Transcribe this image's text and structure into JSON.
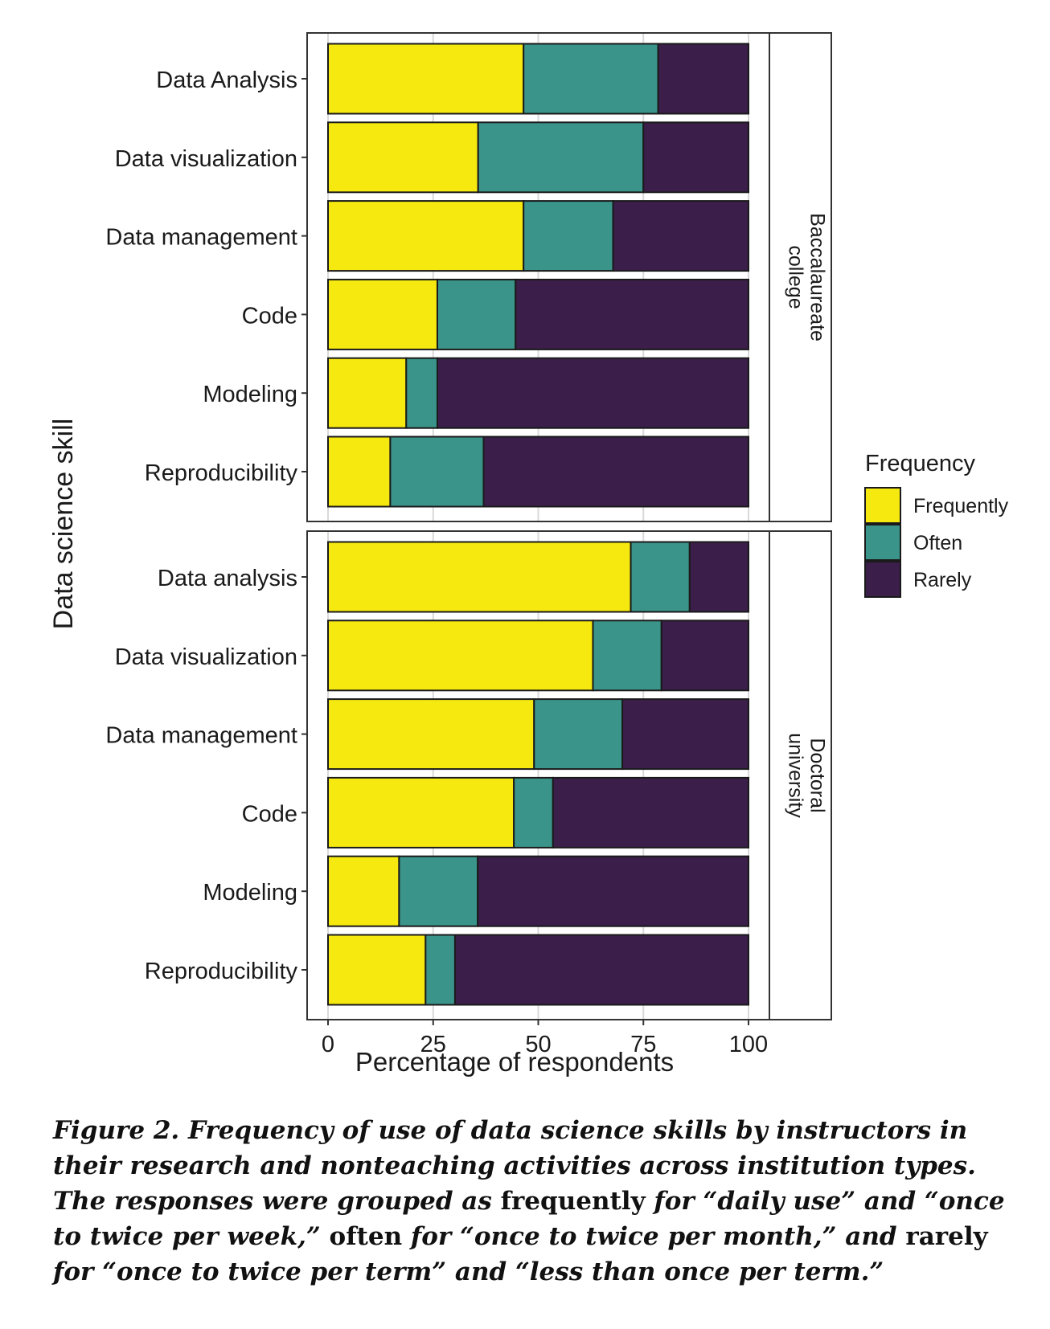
{
  "chart_data": {
    "type": "bar",
    "orientation": "horizontal",
    "stacked": true,
    "xlabel": "Percentage of respondents",
    "ylabel": "Data science skill",
    "xlim": [
      0,
      100
    ],
    "xticks": [
      "0",
      "25",
      "50",
      "75",
      "100"
    ],
    "grid": true,
    "legend": {
      "title": "Frequency",
      "placement": "right",
      "entries": [
        {
          "label": "Frequently",
          "color": "#F5E90F"
        },
        {
          "label": "Often",
          "color": "#3A948A"
        },
        {
          "label": "Rarely",
          "color": "#3B1E4A"
        }
      ]
    },
    "panels": [
      {
        "facet_label_line1": "Baccalaureate",
        "facet_label_line2": "college",
        "categories": [
          "Data Analysis",
          "Data visualization",
          "Data management",
          "Code",
          "Modeling",
          "Reproducibility"
        ],
        "series": [
          {
            "values": [
              46.5,
              35.7,
              46.5,
              26,
              18.6,
              14.8
            ]
          },
          {
            "values": [
              32,
              39.3,
              21.3,
              18.6,
              7.4,
              22.2
            ]
          },
          {
            "values": [
              21.5,
              25,
              32.2,
              55.4,
              74,
              63
            ]
          }
        ]
      },
      {
        "facet_label_line1": "Doctoral",
        "facet_label_line2": "university",
        "categories": [
          "Data analysis",
          "Data visualization",
          "Data management",
          "Code",
          "Modeling",
          "Reproducibility"
        ],
        "series": [
          {
            "values": [
              72,
              63,
              49,
              44.2,
              16.9,
              23.2
            ]
          },
          {
            "values": [
              14,
              16.3,
              21,
              9.3,
              18.7,
              7
            ]
          },
          {
            "values": [
              14,
              20.7,
              30,
              46.5,
              64.4,
              69.8
            ]
          }
        ]
      }
    ]
  },
  "caption": {
    "p1": "Figure 2. Frequency of use of data science skills by instructors in their research and nonteaching activities across institution types. The responses were grouped as ",
    "b1": "frequently",
    "p2": " for “daily use” and “once to twice per week,” ",
    "b2": "often",
    "p3": " for “once to twice per month,” and ",
    "b3": "rarely",
    "p4": " for “once to twice per term” and “less than once per term.”"
  }
}
